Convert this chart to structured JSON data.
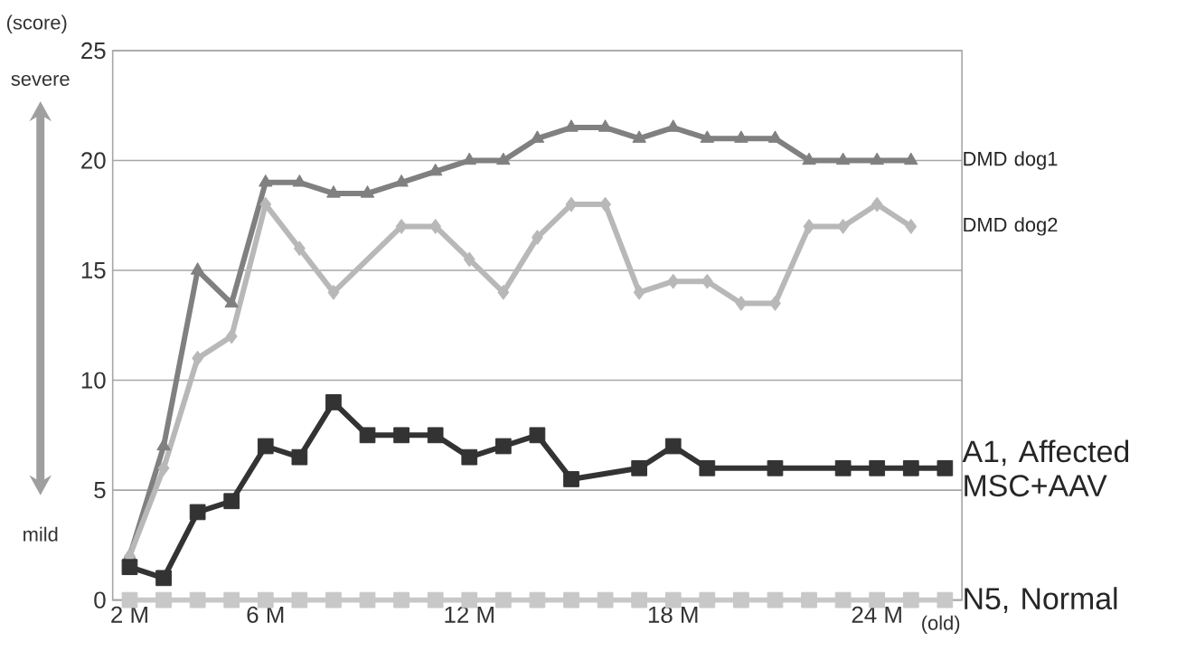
{
  "chart_data": {
    "type": "line",
    "ylabel": "(score)",
    "xlabel": "(old)",
    "xlim": [
      1.5,
      26.5
    ],
    "ylim": [
      0,
      25
    ],
    "xticks": [
      {
        "value": 2,
        "label": "2 M"
      },
      {
        "value": 6,
        "label": "6 M"
      },
      {
        "value": 12,
        "label": "12 M"
      },
      {
        "value": 18,
        "label": "18 M"
      },
      {
        "value": 24,
        "label": "24 M"
      }
    ],
    "yticks": [
      0,
      5,
      10,
      15,
      20,
      25
    ],
    "grid": "y",
    "annotations": [
      "severe",
      "mild"
    ],
    "series": [
      {
        "name": "DMD dog1",
        "color": "#808080",
        "marker": "triangle",
        "x": [
          2,
          3,
          4,
          5,
          6,
          7,
          8,
          9,
          10,
          11,
          12,
          13,
          14,
          15,
          16,
          17,
          18,
          19,
          20,
          21,
          22,
          23,
          24,
          25
        ],
        "values": [
          2,
          7,
          15,
          13.5,
          19,
          19,
          18.5,
          18.5,
          19,
          19.5,
          20,
          20,
          21,
          21.5,
          21.5,
          21,
          21.5,
          21,
          21,
          21,
          20,
          20,
          20,
          20
        ]
      },
      {
        "name": "DMD dog2",
        "color": "#b8b8b8",
        "marker": "diamond",
        "x": [
          2,
          3,
          4,
          5,
          6,
          7,
          8,
          10,
          11,
          12,
          13,
          14,
          15,
          16,
          17,
          18,
          19,
          20,
          21,
          22,
          23,
          24,
          25
        ],
        "values": [
          2,
          6,
          11,
          12,
          18,
          16,
          14,
          17,
          17,
          15.5,
          14,
          16.5,
          18,
          18,
          14,
          14.5,
          14.5,
          13.5,
          13.5,
          17,
          17,
          18,
          17
        ]
      },
      {
        "name": "A1, Affected MSC+AAV",
        "color": "#333333",
        "marker": "square",
        "x": [
          2,
          3,
          4,
          5,
          6,
          7,
          8,
          9,
          10,
          11,
          12,
          13,
          14,
          15,
          17,
          18,
          19,
          21,
          23,
          24,
          25,
          26
        ],
        "values": [
          1.5,
          1,
          4,
          4.5,
          7,
          6.5,
          9,
          7.5,
          7.5,
          7.5,
          6.5,
          7,
          7.5,
          5.5,
          6,
          7,
          6,
          6,
          6,
          6,
          6,
          6
        ]
      },
      {
        "name": "N5, Normal",
        "color": "#c8c8c8",
        "marker": "square",
        "x": [
          2,
          3,
          4,
          5,
          6,
          7,
          8,
          9,
          10,
          11,
          12,
          13,
          14,
          15,
          16,
          17,
          18,
          19,
          20,
          21,
          22,
          23,
          24,
          25,
          26
        ],
        "values": [
          0,
          0,
          0,
          0,
          0,
          0,
          0,
          0,
          0,
          0,
          0,
          0,
          0,
          0,
          0,
          0,
          0,
          0,
          0,
          0,
          0,
          0,
          0,
          0,
          0
        ]
      }
    ]
  }
}
